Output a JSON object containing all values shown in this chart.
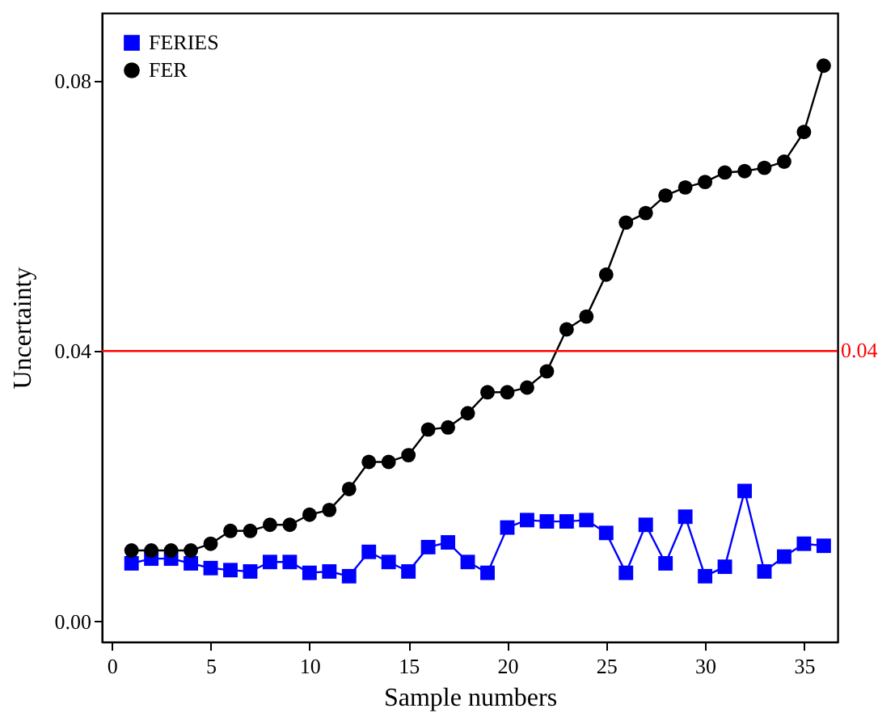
{
  "chart_data": {
    "type": "line",
    "xlabel": "Sample numbers",
    "ylabel": "Uncertainty",
    "x": [
      1,
      2,
      3,
      4,
      5,
      6,
      7,
      8,
      9,
      10,
      11,
      12,
      13,
      14,
      15,
      16,
      17,
      18,
      19,
      20,
      21,
      22,
      23,
      24,
      25,
      26,
      27,
      28,
      29,
      30,
      31,
      32,
      33,
      34,
      35,
      36
    ],
    "series": [
      {
        "name": "FERIES",
        "color": "#0000ff",
        "marker": "square",
        "values": [
          0.0086,
          0.0093,
          0.0093,
          0.0086,
          0.0079,
          0.0076,
          0.0074,
          0.0088,
          0.0088,
          0.0072,
          0.0074,
          0.0067,
          0.0103,
          0.0088,
          0.0074,
          0.011,
          0.0117,
          0.0088,
          0.0072,
          0.0139,
          0.015,
          0.0148,
          0.0148,
          0.015,
          0.0131,
          0.0072,
          0.0143,
          0.0086,
          0.0155,
          0.0067,
          0.0081,
          0.0193,
          0.0074,
          0.0096,
          0.0115,
          0.0112
        ]
      },
      {
        "name": "FER",
        "color": "#000000",
        "marker": "circle",
        "values": [
          0.0105,
          0.0105,
          0.0105,
          0.0105,
          0.0115,
          0.0134,
          0.0134,
          0.0143,
          0.0143,
          0.0158,
          0.0165,
          0.0196,
          0.0236,
          0.0236,
          0.0246,
          0.0284,
          0.0287,
          0.0308,
          0.0339,
          0.0339,
          0.0346,
          0.037,
          0.0432,
          0.0451,
          0.0513,
          0.059,
          0.0604,
          0.063,
          0.0642,
          0.065,
          0.0664,
          0.0666,
          0.0671,
          0.068,
          0.0724,
          0.0822
        ]
      }
    ],
    "xlim": [
      -0.5,
      36.7
    ],
    "xticks": [
      0,
      5,
      10,
      15,
      20,
      25,
      30,
      35
    ],
    "ylim": [
      -0.003,
      0.09
    ],
    "yticks": [
      {
        "value": 0,
        "label": "0.00"
      },
      {
        "value": 0.04,
        "label": "0.04"
      },
      {
        "value": 0.08,
        "label": "0.08"
      }
    ],
    "ref_lines": [
      {
        "axis": "y",
        "value": 0.04,
        "label": "0.04",
        "color": "#ff0000"
      }
    ],
    "legend": "top left",
    "grid": false
  }
}
